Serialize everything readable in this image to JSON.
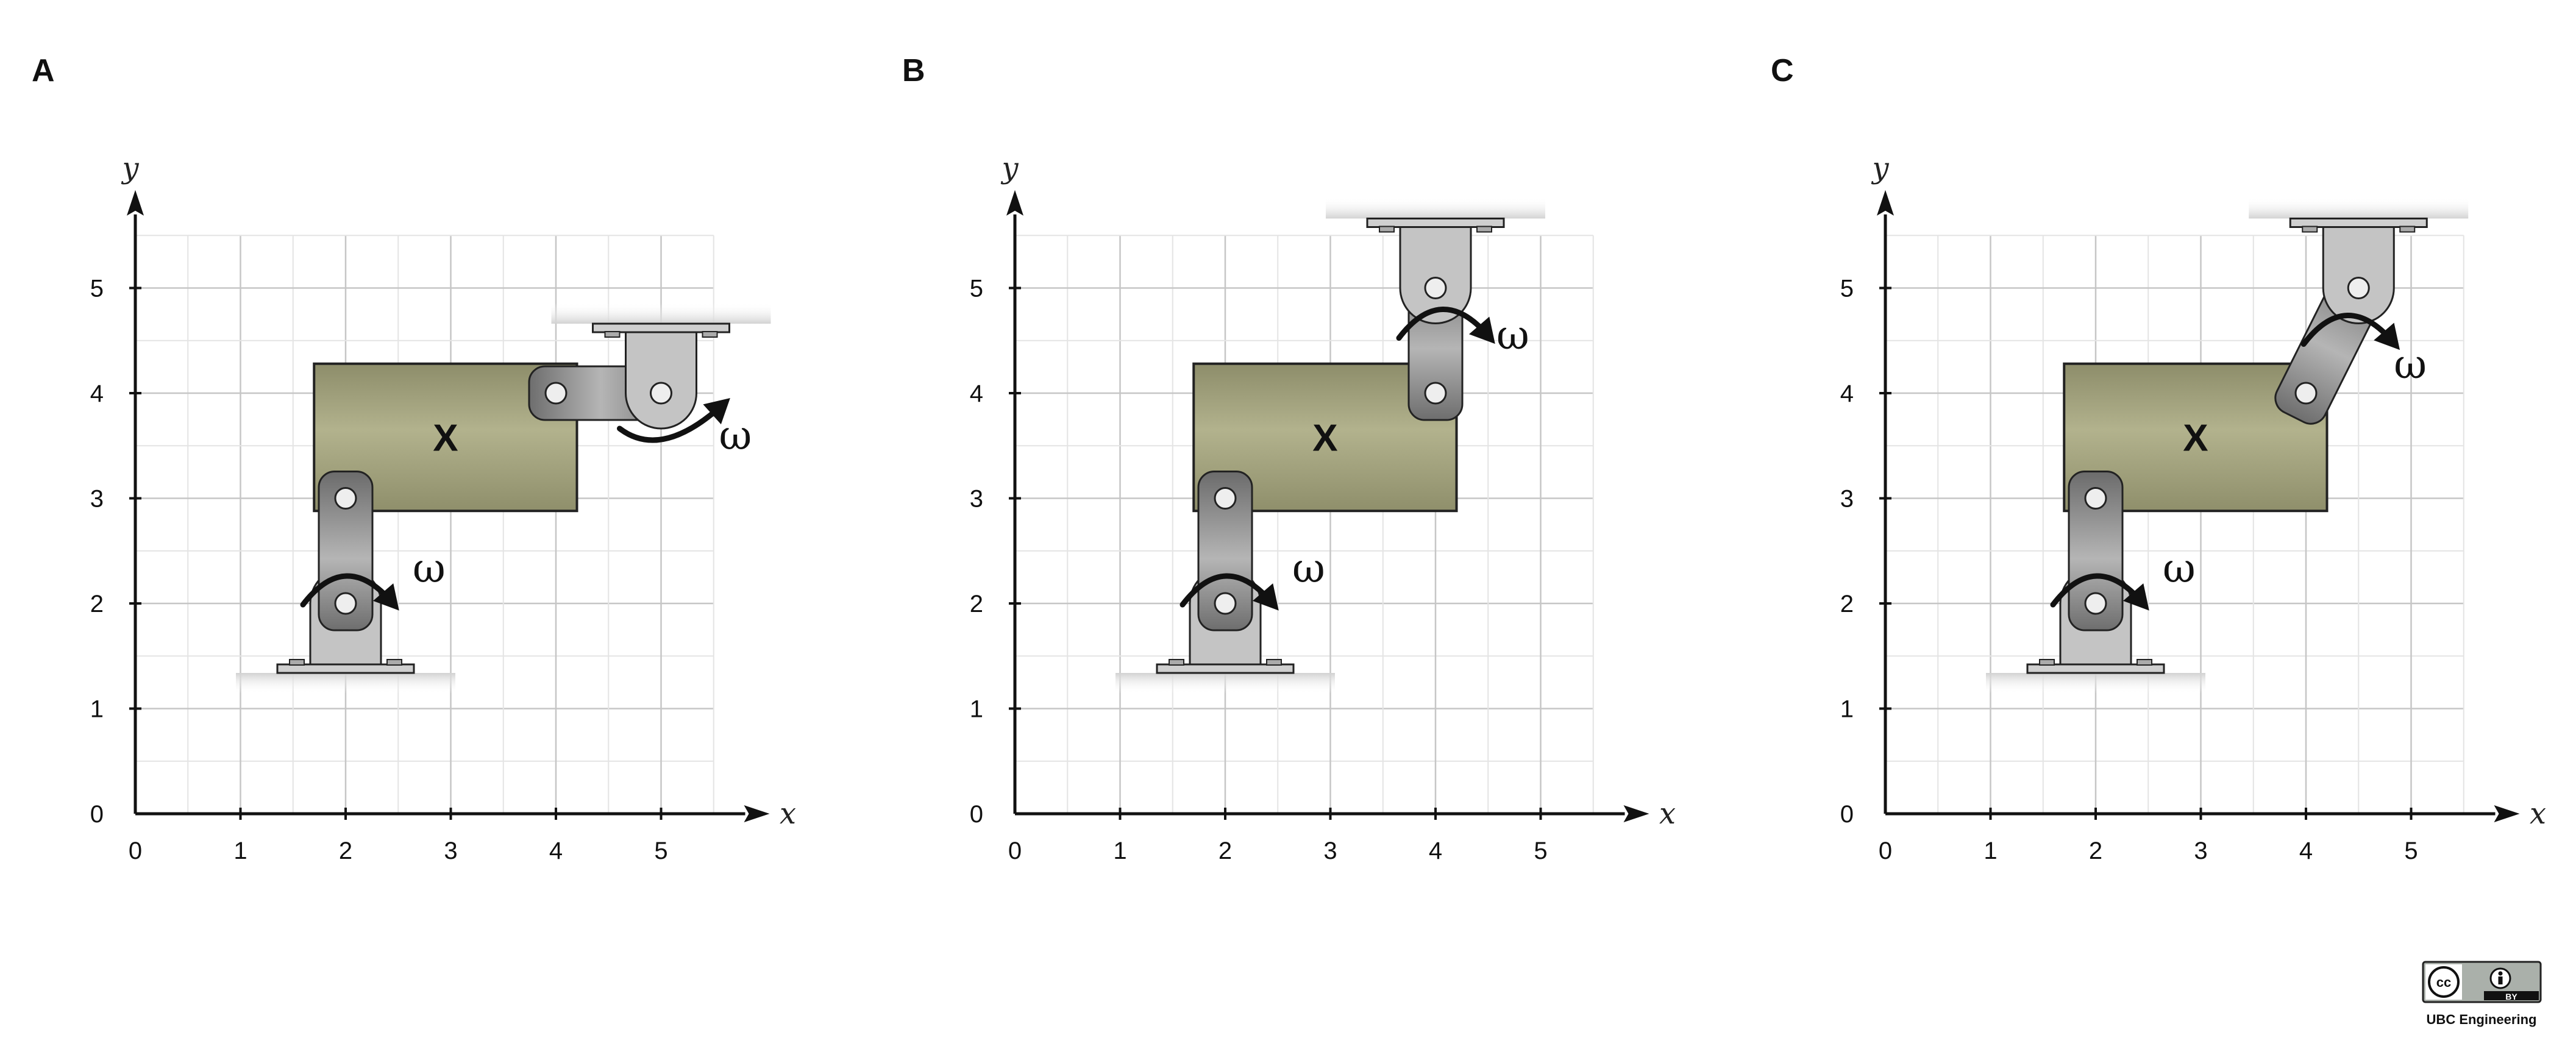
{
  "panels": [
    {
      "label": "A",
      "body_label": "X",
      "omega_symbol": "ω",
      "x_axis_label": "x",
      "y_axis_label": "y",
      "x_ticks": [
        "0",
        "1",
        "2",
        "3",
        "4",
        "5"
      ],
      "y_ticks": [
        "0",
        "1",
        "2",
        "3",
        "4",
        "5"
      ],
      "lower_link": {
        "pins": [
          [
            2,
            2
          ],
          [
            2,
            3
          ]
        ]
      },
      "upper_link": {
        "pins": [
          [
            4,
            4
          ],
          [
            5,
            4
          ]
        ],
        "ground_at": [
          5,
          4
        ],
        "ground_side": "top"
      },
      "body_rect": {
        "x_range": [
          1.7,
          4.2
        ],
        "y_range": [
          2.88,
          4.28
        ]
      }
    },
    {
      "label": "B",
      "body_label": "X",
      "omega_symbol": "ω",
      "x_axis_label": "x",
      "y_axis_label": "y",
      "x_ticks": [
        "0",
        "1",
        "2",
        "3",
        "4",
        "5"
      ],
      "y_ticks": [
        "0",
        "1",
        "2",
        "3",
        "4",
        "5"
      ],
      "lower_link": {
        "pins": [
          [
            2,
            2
          ],
          [
            2,
            3
          ]
        ]
      },
      "upper_link": {
        "pins": [
          [
            4,
            4
          ],
          [
            4,
            5
          ]
        ],
        "ground_at": [
          4,
          5
        ],
        "ground_side": "top"
      },
      "body_rect": {
        "x_range": [
          1.7,
          4.2
        ],
        "y_range": [
          2.88,
          4.28
        ]
      }
    },
    {
      "label": "C",
      "body_label": "X",
      "omega_symbol": "ω",
      "x_axis_label": "x",
      "y_axis_label": "y",
      "x_ticks": [
        "0",
        "1",
        "2",
        "3",
        "4",
        "5"
      ],
      "y_ticks": [
        "0",
        "1",
        "2",
        "3",
        "4",
        "5"
      ],
      "lower_link": {
        "pins": [
          [
            2,
            2
          ],
          [
            2,
            3
          ]
        ]
      },
      "upper_link": {
        "pins": [
          [
            4,
            4
          ],
          [
            4.5,
            5
          ]
        ],
        "ground_at": [
          4.5,
          5
        ],
        "ground_side": "top"
      },
      "body_rect": {
        "x_range": [
          1.7,
          4.2
        ],
        "y_range": [
          2.88,
          4.28
        ]
      }
    }
  ],
  "license_badge": {
    "cc_text": "cc",
    "by_text": "BY",
    "credit": "UBC Engineering"
  },
  "colors": {
    "body_fill": "#a8a880",
    "link_fill": "#8e8e8e",
    "mount_fill": "#c4c4c4",
    "arrow": "#111111"
  }
}
